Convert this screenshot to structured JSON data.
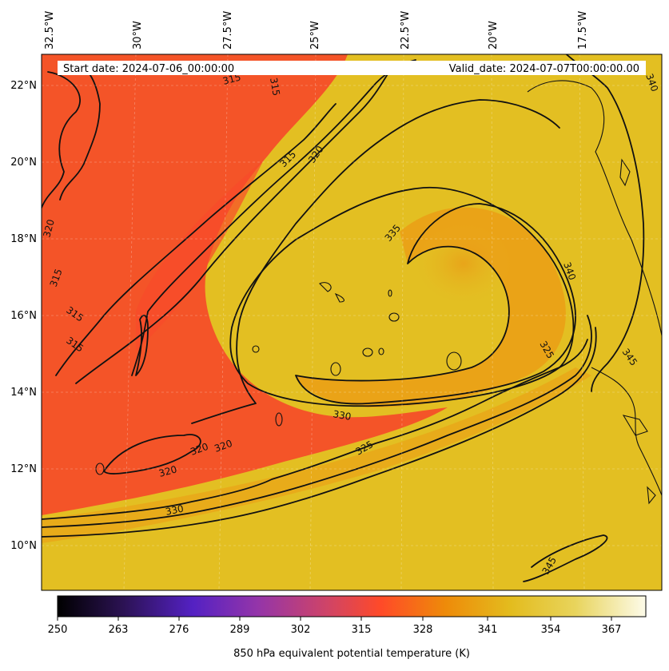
{
  "header": {
    "start_date": "Start date: 2024-07-06_00:00:00",
    "valid_date": "Valid_date: 2024-07-07T00:00:00.00"
  },
  "longitude_labels": [
    "32.5°W",
    "30°W",
    "27.5°W",
    "25°W",
    "22.5°W",
    "20°W",
    "17.5°W"
  ],
  "latitude_labels": [
    "22°N",
    "20°N",
    "18°N",
    "16°N",
    "14°N",
    "12°N",
    "10°N"
  ],
  "contour_labels": [
    "315",
    "315",
    "315",
    "320",
    "320",
    "320",
    "315",
    "315",
    "315",
    "320",
    "320",
    "330",
    "330",
    "325",
    "325",
    "335",
    "340",
    "345",
    "325",
    "340",
    "345"
  ],
  "colorbar": {
    "label": "850 hPa equivalent potential temperature (K)",
    "ticks": [
      "250",
      "263",
      "276",
      "289",
      "302",
      "315",
      "328",
      "341",
      "354",
      "367"
    ],
    "colormap": [
      "#000000",
      "#2b1252",
      "#5421c3",
      "#9435a9",
      "#d04466",
      "#ff4a28",
      "#ee8b09",
      "#e3bc1e",
      "#e8d45c",
      "#fdfbe9"
    ]
  },
  "map_colors": {
    "cool": "#f45428",
    "warm": "#e3bf22",
    "mid": "#ec9a14"
  }
}
